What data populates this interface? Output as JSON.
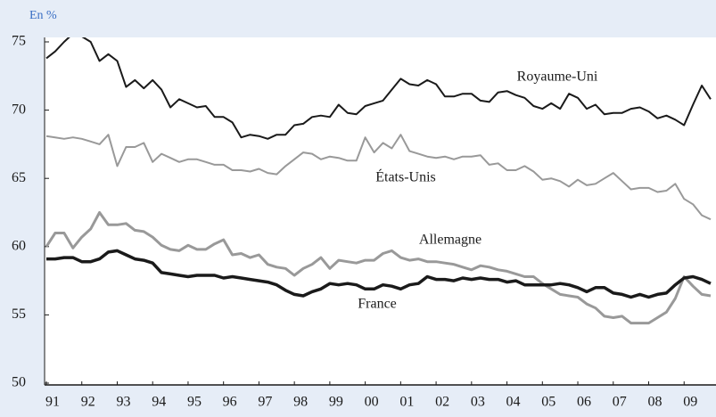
{
  "chart_data": {
    "type": "line",
    "ylabel": "En %",
    "x": [
      1991,
      1991.25,
      1991.5,
      1991.75,
      1992,
      1992.25,
      1992.5,
      1992.75,
      1993,
      1993.25,
      1993.5,
      1993.75,
      1994,
      1994.25,
      1994.5,
      1994.75,
      1995,
      1995.25,
      1995.5,
      1995.75,
      1996,
      1996.25,
      1996.5,
      1996.75,
      1997,
      1997.25,
      1997.5,
      1997.75,
      1998,
      1998.25,
      1998.5,
      1998.75,
      1999,
      1999.25,
      1999.5,
      1999.75,
      2000,
      2000.25,
      2000.5,
      2000.75,
      2001,
      2001.25,
      2001.5,
      2001.75,
      2002,
      2002.25,
      2002.5,
      2002.75,
      2003,
      2003.25,
      2003.5,
      2003.75,
      2004,
      2004.25,
      2004.5,
      2004.75,
      2005,
      2005.25,
      2005.5,
      2005.75,
      2006,
      2006.25,
      2006.5,
      2006.75,
      2007,
      2007.25,
      2007.5,
      2007.75,
      2008,
      2008.25,
      2008.5,
      2008.75,
      2009,
      2009.25,
      2009.5,
      2009.75
    ],
    "series": [
      {
        "name": "Royaume-Uni",
        "color": "#1a1a1a",
        "values": [
          73.8,
          74.3,
          75.0,
          75.6,
          75.4,
          75.0,
          73.6,
          74.1,
          73.6,
          71.7,
          72.2,
          71.6,
          72.2,
          71.5,
          70.2,
          70.8,
          70.5,
          70.2,
          70.3,
          69.5,
          69.5,
          69.1,
          68.0,
          68.2,
          68.1,
          67.9,
          68.2,
          68.2,
          68.9,
          69.0,
          69.5,
          69.6,
          69.5,
          70.4,
          69.8,
          69.7,
          70.3,
          70.5,
          70.7,
          71.5,
          72.3,
          71.9,
          71.8,
          72.2,
          71.9,
          71.0,
          71.0,
          71.2,
          71.2,
          70.7,
          70.6,
          71.3,
          71.4,
          71.1,
          70.9,
          70.3,
          70.1,
          70.5,
          70.1,
          71.2,
          70.9,
          70.1,
          70.4,
          69.7,
          69.8,
          69.8,
          70.1,
          70.2,
          69.9,
          69.4,
          69.6,
          69.3,
          68.9,
          70.4,
          71.8,
          70.8
        ]
      },
      {
        "name": "États-Unis",
        "color": "#999999",
        "values": [
          68.1,
          68.0,
          67.9,
          68.0,
          67.9,
          67.7,
          67.5,
          68.2,
          65.9,
          67.3,
          67.3,
          67.6,
          66.2,
          66.8,
          66.5,
          66.2,
          66.4,
          66.4,
          66.2,
          66.0,
          66.0,
          65.6,
          65.6,
          65.5,
          65.7,
          65.4,
          65.3,
          65.9,
          66.4,
          66.9,
          66.8,
          66.4,
          66.6,
          66.5,
          66.3,
          66.3,
          68.0,
          66.9,
          67.6,
          67.2,
          68.2,
          67.0,
          66.8,
          66.6,
          66.5,
          66.6,
          66.4,
          66.6,
          66.6,
          66.7,
          66.0,
          66.1,
          65.6,
          65.6,
          65.9,
          65.5,
          64.9,
          65.0,
          64.8,
          64.4,
          64.9,
          64.5,
          64.6,
          65.0,
          65.4,
          64.8,
          64.2,
          64.3,
          64.3,
          64.0,
          64.1,
          64.6,
          63.5,
          63.1,
          62.3,
          62.0
        ]
      },
      {
        "name": "Allemagne",
        "color": "#999999",
        "values": [
          60.0,
          61.0,
          61.0,
          59.9,
          60.7,
          61.3,
          62.5,
          61.6,
          61.6,
          61.7,
          61.2,
          61.1,
          60.7,
          60.1,
          59.8,
          59.7,
          60.1,
          59.8,
          59.8,
          60.2,
          60.5,
          59.4,
          59.5,
          59.2,
          59.4,
          58.7,
          58.5,
          58.4,
          57.9,
          58.4,
          58.7,
          59.2,
          58.4,
          59.0,
          58.9,
          58.8,
          59.0,
          59.0,
          59.5,
          59.7,
          59.2,
          59.0,
          59.1,
          58.9,
          58.9,
          58.8,
          58.7,
          58.5,
          58.3,
          58.6,
          58.5,
          58.3,
          58.2,
          58.0,
          57.8,
          57.8,
          57.3,
          56.9,
          56.5,
          56.4,
          56.3,
          55.8,
          55.5,
          54.9,
          54.8,
          54.9,
          54.4,
          54.4,
          54.4,
          54.8,
          55.2,
          56.2,
          57.8,
          57.1,
          56.5,
          56.4
        ]
      },
      {
        "name": "France",
        "color": "#1a1a1a",
        "values": [
          59.1,
          59.1,
          59.2,
          59.2,
          58.9,
          58.9,
          59.1,
          59.6,
          59.7,
          59.4,
          59.1,
          59.0,
          58.8,
          58.1,
          58.0,
          57.9,
          57.8,
          57.9,
          57.9,
          57.9,
          57.7,
          57.8,
          57.7,
          57.6,
          57.5,
          57.4,
          57.2,
          56.8,
          56.5,
          56.4,
          56.7,
          56.9,
          57.3,
          57.2,
          57.3,
          57.2,
          56.9,
          56.9,
          57.2,
          57.1,
          56.9,
          57.2,
          57.3,
          57.8,
          57.6,
          57.6,
          57.5,
          57.7,
          57.6,
          57.7,
          57.6,
          57.6,
          57.4,
          57.5,
          57.2,
          57.2,
          57.2,
          57.2,
          57.3,
          57.2,
          57.0,
          56.7,
          57.0,
          57.0,
          56.6,
          56.5,
          56.3,
          56.5,
          56.3,
          56.5,
          56.6,
          57.2,
          57.7,
          57.8,
          57.6,
          57.3
        ]
      }
    ],
    "xlim": [
      1991,
      2009.9
    ],
    "xticks": [
      {
        "value": 1991,
        "label": "91"
      },
      {
        "value": 1992,
        "label": "92"
      },
      {
        "value": 1993,
        "label": "93"
      },
      {
        "value": 1994,
        "label": "94"
      },
      {
        "value": 1995,
        "label": "95"
      },
      {
        "value": 1996,
        "label": "96"
      },
      {
        "value": 1997,
        "label": "97"
      },
      {
        "value": 1998,
        "label": "98"
      },
      {
        "value": 1999,
        "label": "99"
      },
      {
        "value": 2000,
        "label": "00"
      },
      {
        "value": 2001,
        "label": "01"
      },
      {
        "value": 2002,
        "label": "02"
      },
      {
        "value": 2003,
        "label": "03"
      },
      {
        "value": 2004,
        "label": "04"
      },
      {
        "value": 2005,
        "label": "05"
      },
      {
        "value": 2006,
        "label": "06"
      },
      {
        "value": 2007,
        "label": "07"
      },
      {
        "value": 2008,
        "label": "08"
      },
      {
        "value": 2009,
        "label": "09"
      }
    ],
    "ylim": [
      50,
      75
    ],
    "yticks": [
      50,
      55,
      60,
      65,
      70,
      75
    ],
    "grid": false
  }
}
